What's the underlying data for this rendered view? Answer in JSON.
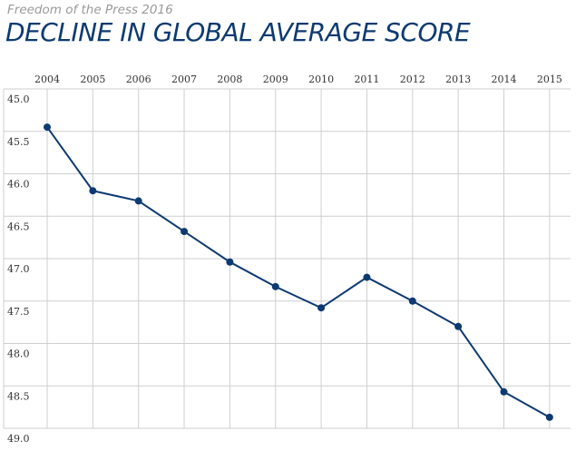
{
  "chart_data": {
    "type": "line",
    "title": "DECLINE IN GLOBAL AVERAGE SCORE",
    "subtitle": "Freedom of the Press 2016",
    "xlabel": "",
    "ylabel": "",
    "x_axis_position": "top",
    "y_inverted": true,
    "grid": true,
    "categories": [
      "2004",
      "2005",
      "2006",
      "2007",
      "2008",
      "2009",
      "2010",
      "2011",
      "2012",
      "2013",
      "2014",
      "2015"
    ],
    "yticks": [
      "45.0",
      "45.5",
      "46.0",
      "46.5",
      "47.0",
      "47.5",
      "48.0",
      "48.5",
      "49.0"
    ],
    "ylim": [
      45.0,
      49.0
    ],
    "series": [
      {
        "values": [
          45.45,
          46.2,
          46.32,
          46.68,
          47.04,
          47.33,
          47.58,
          47.22,
          47.5,
          47.8,
          48.57,
          48.87
        ]
      }
    ],
    "colors": {
      "line": "#0d3a72",
      "grid": "#cfcfcf",
      "title": "#0d3a72",
      "subtitle": "#9a9a9a"
    }
  }
}
